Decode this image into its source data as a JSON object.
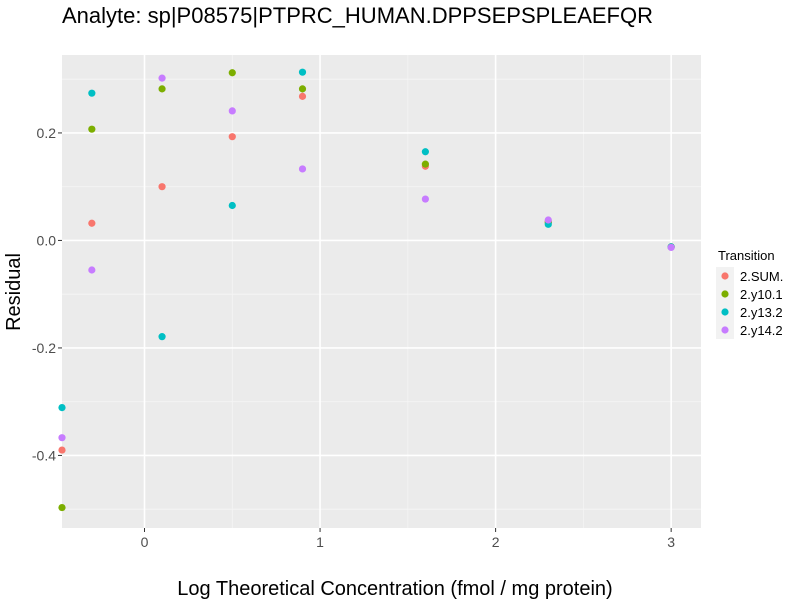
{
  "chart_data": {
    "type": "scatter",
    "title": "Analyte: sp|P08575|PTPRC_HUMAN.DPPSEPSPLEAEFQR",
    "xlabel": "Log Theoretical Concentration (fmol / mg protein)",
    "ylabel": "Residual",
    "xlim": [
      -0.47,
      3.17
    ],
    "ylim": [
      -0.535,
      0.345
    ],
    "x_ticks": [
      0,
      1,
      2,
      3
    ],
    "x_tick_labels": [
      "0",
      "1",
      "2",
      "3"
    ],
    "y_ticks": [
      -0.4,
      -0.2,
      0.0,
      0.2
    ],
    "y_tick_labels": [
      "-0.4",
      "-0.2",
      "0.0",
      "0.2"
    ],
    "grid": true,
    "background": "#ebebeb",
    "legend": {
      "title": "Transition",
      "position": "right"
    },
    "series": [
      {
        "name": "2.SUM.",
        "color": "#f8766d",
        "points": [
          [
            -0.47,
            -0.39
          ],
          [
            -0.3,
            0.032
          ],
          [
            0.1,
            0.1
          ],
          [
            0.5,
            0.193
          ],
          [
            0.9,
            0.268
          ],
          [
            1.6,
            0.138
          ],
          [
            2.3,
            0.035
          ],
          [
            3.0,
            -0.012
          ]
        ]
      },
      {
        "name": "2.y10.1",
        "color": "#7cae00",
        "points": [
          [
            -0.47,
            -0.497
          ],
          [
            -0.3,
            0.207
          ],
          [
            0.1,
            0.282
          ],
          [
            0.5,
            0.312
          ],
          [
            0.9,
            0.282
          ],
          [
            1.6,
            0.142
          ],
          [
            2.3,
            0.033
          ],
          [
            3.0,
            -0.012
          ]
        ]
      },
      {
        "name": "2.y13.2",
        "color": "#00bfc4",
        "points": [
          [
            -0.47,
            -0.311
          ],
          [
            -0.3,
            0.274
          ],
          [
            0.1,
            -0.179
          ],
          [
            0.5,
            0.065
          ],
          [
            0.9,
            0.313
          ],
          [
            1.6,
            0.165
          ],
          [
            2.3,
            0.03
          ],
          [
            3.0,
            -0.012
          ]
        ]
      },
      {
        "name": "2.y14.2",
        "color": "#c77cff",
        "points": [
          [
            -0.47,
            -0.367
          ],
          [
            -0.3,
            -0.055
          ],
          [
            0.1,
            0.302
          ],
          [
            0.5,
            0.241
          ],
          [
            0.9,
            0.133
          ],
          [
            1.6,
            0.077
          ],
          [
            2.3,
            0.038
          ],
          [
            3.0,
            -0.013
          ]
        ]
      }
    ]
  }
}
